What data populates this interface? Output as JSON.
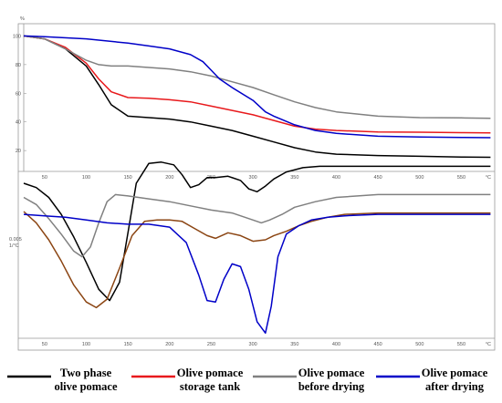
{
  "chart_data": [
    {
      "type": "line",
      "panel": "TG",
      "ylabel": "%",
      "xunit": "°C",
      "x_ticks": [
        50,
        100,
        150,
        200,
        250,
        300,
        350,
        400,
        450,
        500,
        550
      ],
      "y_ticks": [
        100,
        80,
        60,
        40,
        20
      ],
      "xlim": [
        25,
        590
      ],
      "ylim": [
        8,
        106
      ],
      "grid": false,
      "series": [
        {
          "name": "Two phase olive pomace",
          "color": "#000000",
          "x": [
            25,
            50,
            75,
            100,
            115,
            130,
            150,
            175,
            200,
            225,
            250,
            275,
            300,
            325,
            350,
            375,
            400,
            450,
            500,
            550,
            585
          ],
          "y": [
            100,
            98,
            91,
            79,
            66,
            52,
            44,
            43,
            42,
            40,
            37,
            34,
            30,
            26,
            22,
            19,
            17.5,
            16.5,
            16,
            15.5,
            15.3
          ]
        },
        {
          "name": "Olive pomace storage tank",
          "color": "#e8191c",
          "x": [
            25,
            50,
            75,
            100,
            115,
            130,
            150,
            175,
            200,
            225,
            250,
            275,
            300,
            325,
            350,
            375,
            400,
            450,
            500,
            550,
            585
          ],
          "y": [
            100,
            98,
            92,
            81,
            70,
            61,
            57,
            56.5,
            55.5,
            54,
            51,
            48,
            45,
            41,
            37,
            35,
            34,
            33,
            32.8,
            32.5,
            32.3
          ]
        },
        {
          "name": "Olive pomace before drying",
          "color": "#808080",
          "x": [
            25,
            50,
            75,
            100,
            115,
            130,
            150,
            175,
            200,
            225,
            250,
            275,
            300,
            325,
            350,
            375,
            400,
            450,
            500,
            550,
            585
          ],
          "y": [
            100,
            98,
            91,
            83,
            80,
            79,
            79,
            78,
            77,
            75,
            72,
            68,
            64,
            59,
            54,
            50,
            47,
            44,
            43,
            42.8,
            42.5
          ]
        },
        {
          "name": "Olive pomace after drying",
          "color": "#0000c8",
          "x": [
            25,
            50,
            100,
            150,
            175,
            200,
            225,
            240,
            250,
            260,
            275,
            300,
            315,
            325,
            350,
            375,
            400,
            450,
            500,
            550,
            585
          ],
          "y": [
            100,
            99.5,
            98,
            95,
            93,
            91,
            87,
            82,
            76,
            70,
            64,
            55,
            47,
            44,
            38,
            34,
            32,
            30,
            29.5,
            29.2,
            29
          ]
        }
      ]
    },
    {
      "type": "line",
      "panel": "DTG",
      "ylabel": "0.005\n1/°C",
      "xunit": "°C",
      "x_ticks": [
        50,
        100,
        150,
        200,
        250,
        300,
        350,
        400,
        450,
        500,
        550
      ],
      "xlim": [
        25,
        590
      ],
      "grid": false,
      "series": [
        {
          "name": "Two phase olive pomace",
          "color": "#000000",
          "x": [
            25,
            40,
            55,
            70,
            85,
            100,
            115,
            128,
            140,
            150,
            160,
            175,
            190,
            205,
            215,
            225,
            235,
            245,
            255,
            270,
            285,
            295,
            305,
            315,
            325,
            340,
            360,
            380,
            400,
            450,
            500,
            550,
            585
          ],
          "y": [
            0.0,
            -0.3,
            -1.0,
            -2.2,
            -3.8,
            -5.6,
            -7.5,
            -8.3,
            -7.0,
            -3.5,
            0.0,
            1.4,
            1.5,
            1.3,
            0.6,
            -0.3,
            -0.1,
            0.4,
            0.4,
            0.5,
            0.2,
            -0.4,
            -0.6,
            -0.2,
            0.3,
            0.8,
            1.1,
            1.2,
            1.2,
            1.2,
            1.2,
            1.2,
            1.2
          ]
        },
        {
          "name": "Olive pomace before drying",
          "color": "#808080",
          "x": [
            25,
            40,
            55,
            70,
            85,
            95,
            105,
            115,
            125,
            135,
            150,
            175,
            200,
            225,
            250,
            275,
            300,
            310,
            320,
            335,
            350,
            375,
            400,
            450,
            500,
            550,
            585
          ],
          "y": [
            -1.0,
            -1.5,
            -2.5,
            -3.6,
            -4.8,
            -5.2,
            -4.5,
            -2.8,
            -1.3,
            -0.8,
            -0.9,
            -1.1,
            -1.3,
            -1.6,
            -1.9,
            -2.1,
            -2.6,
            -2.8,
            -2.6,
            -2.2,
            -1.7,
            -1.3,
            -1.0,
            -0.8,
            -0.8,
            -0.8,
            -0.8
          ]
        },
        {
          "name": "Olive pomace storage tank",
          "color": "#8b4513",
          "x": [
            25,
            40,
            55,
            70,
            85,
            100,
            112,
            125,
            140,
            155,
            170,
            185,
            200,
            215,
            230,
            245,
            255,
            270,
            285,
            300,
            315,
            325,
            340,
            355,
            370,
            390,
            410,
            450,
            500,
            550,
            585
          ],
          "y": [
            -2.0,
            -2.8,
            -4.0,
            -5.5,
            -7.2,
            -8.4,
            -8.8,
            -8.2,
            -6.0,
            -3.7,
            -2.7,
            -2.6,
            -2.6,
            -2.7,
            -3.2,
            -3.7,
            -3.9,
            -3.5,
            -3.7,
            -4.1,
            -4.0,
            -3.7,
            -3.4,
            -3.0,
            -2.7,
            -2.4,
            -2.2,
            -2.1,
            -2.1,
            -2.1,
            -2.1
          ]
        },
        {
          "name": "Olive pomace after drying",
          "color": "#0000c8",
          "x": [
            25,
            50,
            75,
            100,
            125,
            150,
            175,
            200,
            220,
            235,
            245,
            255,
            265,
            275,
            285,
            295,
            305,
            315,
            322,
            330,
            340,
            355,
            370,
            390,
            410,
            450,
            500,
            550,
            585
          ],
          "y": [
            -2.2,
            -2.3,
            -2.4,
            -2.6,
            -2.8,
            -2.9,
            -2.9,
            -3.1,
            -4.2,
            -6.5,
            -8.3,
            -8.4,
            -6.8,
            -5.7,
            -5.9,
            -7.5,
            -9.8,
            -10.6,
            -8.7,
            -5.2,
            -3.6,
            -3.0,
            -2.6,
            -2.4,
            -2.3,
            -2.2,
            -2.2,
            -2.2,
            -2.2
          ]
        }
      ]
    }
  ],
  "legend": [
    {
      "label": "Two phase\nolive pomace",
      "color": "#000000"
    },
    {
      "label": "Olive pomace\nstorage tank",
      "color": "#e8191c"
    },
    {
      "label": "Olive pomace\nbefore drying",
      "color": "#808080"
    },
    {
      "label": "Olive pomace\nafter drying",
      "color": "#0000c8"
    }
  ]
}
